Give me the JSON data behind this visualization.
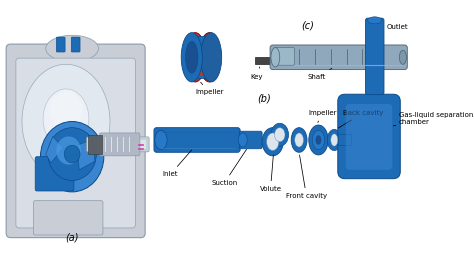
{
  "background_color": "#ffffff",
  "fig_width": 4.74,
  "fig_height": 2.65,
  "dpi": 100,
  "label_a": "(a)",
  "label_b": "(b)",
  "label_c": "(c)",
  "pump_color": "#1e6bb5",
  "pump_color2": "#3a85d0",
  "gray_light": "#c8cdd6",
  "gray_mid": "#b0b8c5",
  "gray_dark": "#8a9aaa",
  "shaft_color": "#8fa8bc",
  "impeller_red": "#c0392b",
  "impeller_blue": "#1e6bb5",
  "text_color": "#000000",
  "font_size": 5.0,
  "arrow_lw": 0.55
}
